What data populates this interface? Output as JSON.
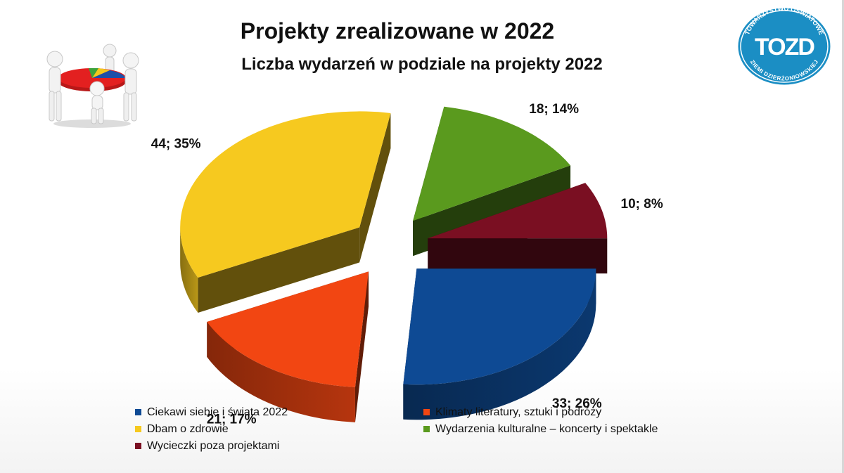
{
  "slide": {
    "title": "Projekty zrealizowane w 2022",
    "logo_text_top": "TOWARZYSTWO OŚWIATOWE",
    "logo_text_bottom": "ZIEMI DZIERŻONIOWSKIEJ",
    "logo_monogram": "TOZD",
    "illustration_icon": "team-pie-chart-figures-icon"
  },
  "chart_data": {
    "type": "pie",
    "title": "Liczba wydarzeń w podziale na projekty 2022",
    "style": "3d-exploded",
    "legend_position": "bottom",
    "slices": [
      {
        "name": "Ciekawi siebie i świata 2022",
        "value": 33,
        "percent": 26,
        "label": "33; 26%",
        "color": "#0e4a94"
      },
      {
        "name": "Klimaty literatury, sztuki i podróży",
        "value": 21,
        "percent": 17,
        "label": "21; 17%",
        "color": "#f24612"
      },
      {
        "name": "Dbam o zdrowie",
        "value": 44,
        "percent": 35,
        "label": "44; 35%",
        "color": "#f6c91f"
      },
      {
        "name": "Wydarzenia kulturalne – koncerty i spektakle",
        "value": 18,
        "percent": 14,
        "label": "18; 14%",
        "color": "#5a9a1e"
      },
      {
        "name": "Wycieczki poza projektami",
        "value": 10,
        "percent": 8,
        "label": "10; 8%",
        "color": "#7a0f22"
      }
    ]
  }
}
